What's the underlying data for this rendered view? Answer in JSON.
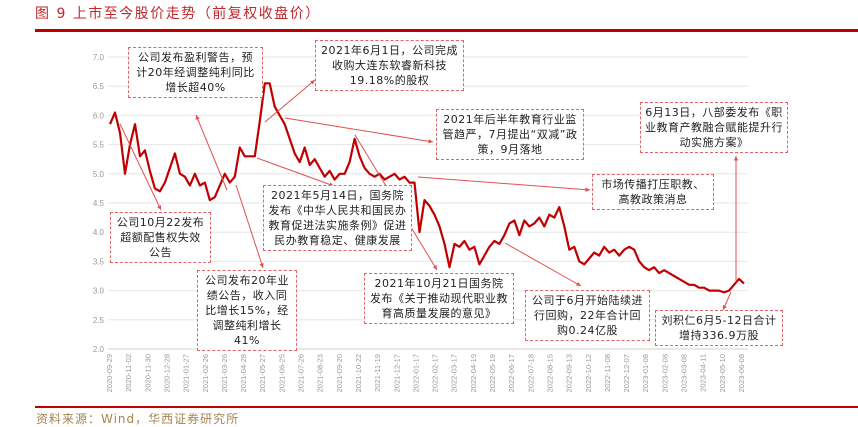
{
  "title": "图 9  上市至今股价走势（前复权收盘价）",
  "source": "资料来源：Wind，华西证券研究所",
  "colors": {
    "line": "#c00000",
    "note_border": "#e06666",
    "grid": "#e6e6e6"
  },
  "chart_data": {
    "type": "line",
    "title": "上市至今股价走势（前复权收盘价）",
    "xlabel": "",
    "ylabel": "",
    "ylim": [
      2.0,
      7.0
    ],
    "yticks": [
      "2.0",
      "2.5",
      "3.0",
      "3.5",
      "4.0",
      "4.5",
      "5.0",
      "5.5",
      "6.0",
      "6.5",
      "7.0"
    ],
    "xticks": [
      "2020-09-29",
      "2020-11-02",
      "2020-11-30",
      "2020-12-28",
      "2021-01-27",
      "2021-02-26",
      "2021-03-26",
      "2021-04-28",
      "2021-05-27",
      "2021-06-25",
      "2021-07-26",
      "2021-08-23",
      "2021-09-20",
      "2021-10-22",
      "2021-11-19",
      "2021-12-17",
      "2022-01-17",
      "2022-02-17",
      "2022-03-17",
      "2022-04-19",
      "2022-05-19",
      "2022-06-17",
      "2022-07-18",
      "2022-08-15",
      "2022-09-13",
      "2022-10-12",
      "2022-11-08",
      "2022-12-07",
      "2023-01-08",
      "2023-02-08",
      "2023-03-08",
      "2023-04-11",
      "2023-05-10",
      "2023-06-08"
    ],
    "grid": true,
    "series": [
      {
        "name": "前复权收盘价",
        "values": [
          5.85,
          6.05,
          5.7,
          5.0,
          5.5,
          5.85,
          5.3,
          5.4,
          5.05,
          4.75,
          4.7,
          4.85,
          5.1,
          5.35,
          5.0,
          4.95,
          4.8,
          5.0,
          4.8,
          4.85,
          4.55,
          4.6,
          4.8,
          5.0,
          4.85,
          4.95,
          5.45,
          5.3,
          5.3,
          5.3,
          5.9,
          6.55,
          6.55,
          6.15,
          6.0,
          5.85,
          5.6,
          5.35,
          5.2,
          5.45,
          5.15,
          5.25,
          5.1,
          4.95,
          5.05,
          4.9,
          5.0,
          5.0,
          5.2,
          5.6,
          5.3,
          5.1,
          5.0,
          4.95,
          5.0,
          4.9,
          4.95,
          5.0,
          4.9,
          4.95,
          4.85,
          4.85,
          4.0,
          4.55,
          4.45,
          4.3,
          4.1,
          3.8,
          3.4,
          3.8,
          3.75,
          3.85,
          3.7,
          3.75,
          3.45,
          3.6,
          3.75,
          3.85,
          3.8,
          3.95,
          4.15,
          4.2,
          3.95,
          4.2,
          4.1,
          4.15,
          4.25,
          4.1,
          4.3,
          4.25,
          4.43,
          4.1,
          3.7,
          3.75,
          3.5,
          3.45,
          3.55,
          3.65,
          3.6,
          3.75,
          3.65,
          3.7,
          3.6,
          3.7,
          3.75,
          3.7,
          3.5,
          3.4,
          3.35,
          3.4,
          3.3,
          3.35,
          3.3,
          3.25,
          3.2,
          3.15,
          3.1,
          3.1,
          3.05,
          3.05,
          3.0,
          3.0,
          3.0,
          2.97,
          3.0,
          3.1,
          3.2,
          3.12
        ]
      }
    ],
    "annotations": [
      "公司发布盈利警告，预计20年经调整纯利同比增长超40%",
      "2021年6月1日，公司完成收购大连东软睿新科技19.18%的股权",
      "2021年后半年教育行业监管趋严，7月提出“双减”政策，9月落地",
      "市场传播打压职教、高教政策消息",
      "6月13日，八部委发布《职业教育产教融合赋能提升行动实施方案》",
      "公司10月22发布超额配售权失效公告",
      "2021年5月14日，国务院发布《中华人民共和国民办教育促进法实施条例》促进民办教育稳定、健康发展",
      "公司发布20年业绩公告，收入同比增长15%，经调整纯利增长41%",
      "2021年10月21日国务院发布《关于推动现代职业教育高质量发展的意见》",
      "公司于6月开始陆续进行回购，22年合计回购0.24亿股",
      "刘积仁6月5-12日合计增持336.9万股"
    ]
  }
}
